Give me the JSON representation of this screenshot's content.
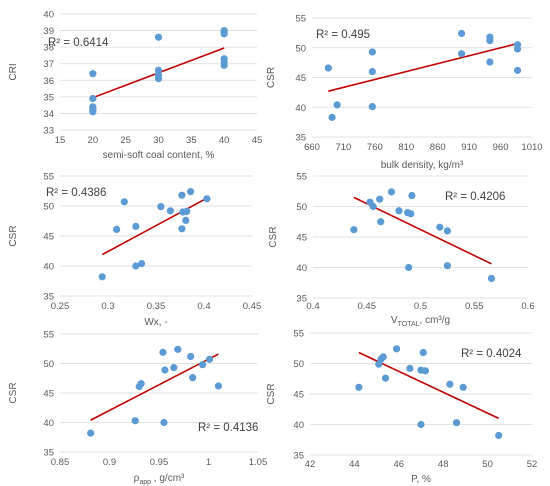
{
  "colors": {
    "points": "#5b9bd5",
    "trendline": "#c00000",
    "gridlines": "#d9d9d9",
    "text": "#595959"
  },
  "chart_data": [
    {
      "type": "scatter",
      "xlabel": "semi-soft coal content, %",
      "ylabel": "CRI",
      "xlim": [
        15,
        45
      ],
      "ylim": [
        33,
        40
      ],
      "xticks": [
        "15",
        "20",
        "25",
        "30",
        "35",
        "40",
        "45"
      ],
      "yticks": [
        "33",
        "34",
        "35",
        "36",
        "37",
        "38",
        "39",
        "40"
      ],
      "grid": "horizontal",
      "r2_label": "R² = 0.6414",
      "points": [
        [
          20,
          36.4
        ],
        [
          20,
          34.9
        ],
        [
          20,
          34.4
        ],
        [
          20,
          34.3
        ],
        [
          20,
          34.2
        ],
        [
          20,
          34.1
        ],
        [
          30,
          38.6
        ],
        [
          30,
          36.6
        ],
        [
          30,
          36.3
        ],
        [
          30,
          36.1
        ],
        [
          40,
          39.0
        ],
        [
          40,
          38.9
        ],
        [
          40,
          38.8
        ],
        [
          40,
          37.3
        ],
        [
          40,
          37.1
        ],
        [
          40,
          36.9
        ]
      ],
      "trend": [
        [
          20,
          34.95
        ],
        [
          40,
          37.95
        ]
      ]
    },
    {
      "type": "scatter",
      "xlabel": "bulk density, kg/m³",
      "ylabel": "CSR",
      "xlim": [
        660,
        1010
      ],
      "ylim": [
        35,
        55
      ],
      "xticks": [
        "660",
        "710",
        "760",
        "810",
        "860",
        "910",
        "960",
        "1010"
      ],
      "yticks": [
        "35",
        "40",
        "45",
        "50",
        "55"
      ],
      "grid": "horizontal",
      "r2_label": "R² = 0.495",
      "points": [
        [
          686,
          46.6
        ],
        [
          692,
          38.3
        ],
        [
          700,
          40.4
        ],
        [
          756,
          49.3
        ],
        [
          756,
          46.0
        ],
        [
          756,
          40.1
        ],
        [
          898,
          52.4
        ],
        [
          898,
          49.0
        ],
        [
          943,
          51.8
        ],
        [
          943,
          51.2
        ],
        [
          943,
          47.6
        ],
        [
          987,
          50.5
        ],
        [
          987,
          49.8
        ],
        [
          987,
          46.2
        ]
      ],
      "trend": [
        [
          686,
          42.7
        ],
        [
          987,
          50.7
        ]
      ]
    },
    {
      "type": "scatter",
      "xlabel": "Wx, -",
      "ylabel": "CSR",
      "xlim": [
        0.25,
        0.45
      ],
      "ylim": [
        35,
        55
      ],
      "xticks": [
        "0.25",
        "0.3",
        "0.35",
        "0.4",
        "0.45"
      ],
      "yticks": [
        "35",
        "40",
        "45",
        "50",
        "55"
      ],
      "grid": "horizontal",
      "r2_label": "R² = 0.4386",
      "points": [
        [
          0.294,
          38.2
        ],
        [
          0.309,
          46.1
        ],
        [
          0.317,
          50.7
        ],
        [
          0.329,
          46.6
        ],
        [
          0.329,
          40.0
        ],
        [
          0.335,
          40.4
        ],
        [
          0.355,
          49.9
        ],
        [
          0.365,
          49.2
        ],
        [
          0.377,
          51.8
        ],
        [
          0.377,
          46.2
        ],
        [
          0.378,
          49.0
        ],
        [
          0.381,
          47.6
        ],
        [
          0.382,
          49.1
        ],
        [
          0.386,
          52.4
        ],
        [
          0.403,
          51.2
        ]
      ],
      "trend": [
        [
          0.294,
          41.9
        ],
        [
          0.403,
          51.3
        ]
      ]
    },
    {
      "type": "scatter",
      "xlabel": "V",
      "xlabel_sub": "TOTAL",
      "xlabel_unit": ", cm³/g",
      "ylabel": "CSR",
      "xlim": [
        0.4,
        0.6
      ],
      "ylim": [
        35,
        55
      ],
      "xticks": [
        "0.4",
        "0.45",
        "0.5",
        "0.55",
        "0.6"
      ],
      "yticks": [
        "35",
        "40",
        "45",
        "50",
        "55"
      ],
      "grid": "horizontal",
      "r2_label": "R² = 0.4206",
      "points": [
        [
          0.438,
          46.2
        ],
        [
          0.453,
          50.7
        ],
        [
          0.456,
          50.0
        ],
        [
          0.462,
          51.2
        ],
        [
          0.463,
          47.5
        ],
        [
          0.473,
          52.4
        ],
        [
          0.48,
          49.3
        ],
        [
          0.488,
          49.0
        ],
        [
          0.489,
          40.0
        ],
        [
          0.491,
          48.8
        ],
        [
          0.492,
          51.8
        ],
        [
          0.518,
          46.6
        ],
        [
          0.525,
          46.0
        ],
        [
          0.525,
          40.3
        ],
        [
          0.566,
          38.2
        ]
      ],
      "trend": [
        [
          0.438,
          51.5
        ],
        [
          0.566,
          40.6
        ]
      ]
    },
    {
      "type": "scatter",
      "xlabel": "ρ",
      "xlabel_sub": "app",
      "xlabel_unit": " , g/cm³",
      "ylabel": "CSR",
      "xlim": [
        0.85,
        1.05
      ],
      "ylim": [
        35,
        55
      ],
      "xticks": [
        "0.85",
        "0.9",
        "0.95",
        "1",
        "1.05"
      ],
      "yticks": [
        "35",
        "40",
        "45",
        "50",
        "55"
      ],
      "grid": "horizontal",
      "r2_label": "R² = 0.4136",
      "points": [
        [
          0.881,
          38.2
        ],
        [
          0.926,
          40.3
        ],
        [
          0.93,
          46.1
        ],
        [
          0.932,
          46.6
        ],
        [
          0.954,
          51.9
        ],
        [
          0.955,
          40.0
        ],
        [
          0.956,
          48.9
        ],
        [
          0.965,
          49.3
        ],
        [
          0.969,
          52.4
        ],
        [
          0.982,
          51.2
        ],
        [
          0.984,
          47.6
        ],
        [
          0.994,
          49.8
        ],
        [
          1.001,
          50.7
        ],
        [
          1.01,
          46.2
        ]
      ],
      "trend": [
        [
          0.881,
          40.4
        ],
        [
          1.01,
          51.6
        ]
      ]
    },
    {
      "type": "scatter",
      "xlabel": "P, %",
      "ylabel": "CSR",
      "xlim": [
        42,
        52
      ],
      "ylim": [
        35,
        55
      ],
      "xticks": [
        "42",
        "44",
        "46",
        "48",
        "50",
        "52"
      ],
      "yticks": [
        "35",
        "40",
        "45",
        "50",
        "55"
      ],
      "grid": "horizontal",
      "r2_label": "R² = 0.4024",
      "points": [
        [
          44.2,
          46.1
        ],
        [
          45.1,
          49.9
        ],
        [
          45.2,
          50.7
        ],
        [
          45.3,
          51.1
        ],
        [
          45.4,
          47.6
        ],
        [
          45.9,
          52.4
        ],
        [
          46.5,
          49.2
        ],
        [
          47.0,
          40.0
        ],
        [
          47.0,
          48.9
        ],
        [
          47.1,
          51.8
        ],
        [
          47.2,
          48.8
        ],
        [
          48.3,
          46.6
        ],
        [
          48.6,
          40.3
        ],
        [
          48.9,
          46.1
        ],
        [
          50.5,
          38.2
        ]
      ],
      "trend": [
        [
          44.2,
          51.8
        ],
        [
          50.5,
          41.0
        ]
      ]
    }
  ]
}
